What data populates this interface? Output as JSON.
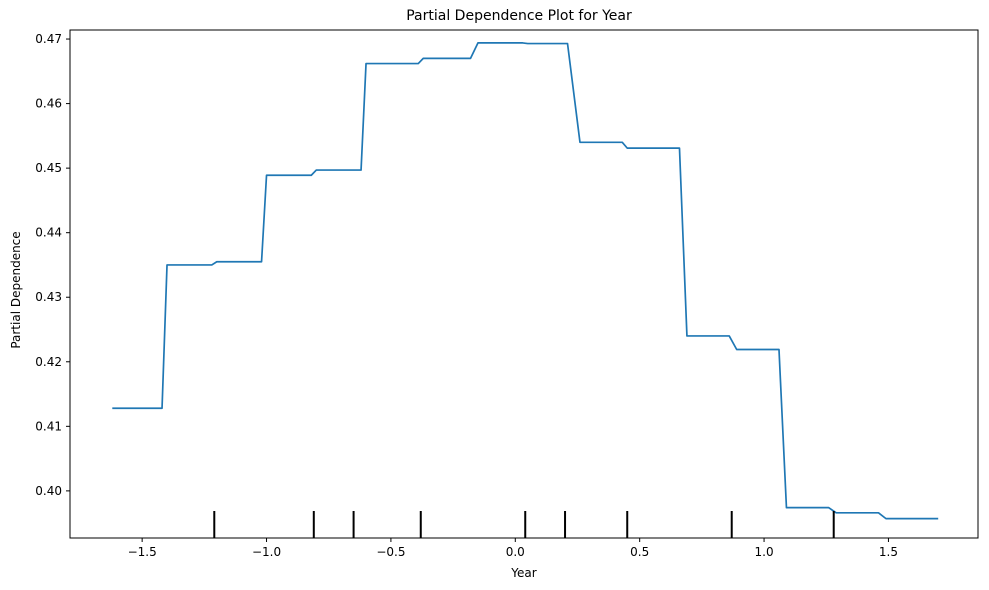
{
  "chart_data": {
    "type": "line",
    "title": "Partial Dependence Plot for Year",
    "xlabel": "Year",
    "ylabel": "Partial Dependence",
    "xlim": [
      -1.79,
      1.86
    ],
    "ylim": [
      0.3927,
      0.4714
    ],
    "x_ticks": [
      -1.5,
      -1.0,
      -0.5,
      0.0,
      0.5,
      1.0,
      1.5
    ],
    "x_tick_labels": [
      "−1.5",
      "−1.0",
      "−0.5",
      "0.0",
      "0.5",
      "1.0",
      "1.5"
    ],
    "y_ticks": [
      0.4,
      0.41,
      0.42,
      0.43,
      0.44,
      0.45,
      0.46,
      0.47
    ],
    "y_tick_labels": [
      "0.40",
      "0.41",
      "0.42",
      "0.43",
      "0.44",
      "0.45",
      "0.46",
      "0.47"
    ],
    "grid": false,
    "line_color": "#1f77b4",
    "series": [
      {
        "x": [
          -1.62,
          -1.42,
          -1.4,
          -1.22,
          -1.2,
          -1.02,
          -1.0,
          -0.82,
          -0.8,
          -0.62,
          -0.6,
          -0.39,
          -0.37,
          -0.18,
          -0.15,
          0.03,
          0.05,
          0.21,
          0.26,
          0.43,
          0.45,
          0.66,
          0.69,
          0.86,
          0.89,
          1.06,
          1.09,
          1.26,
          1.29,
          1.46,
          1.49,
          1.7
        ],
        "y": [
          0.4128,
          0.4128,
          0.435,
          0.435,
          0.4355,
          0.4355,
          0.4489,
          0.4489,
          0.4497,
          0.4497,
          0.4662,
          0.4662,
          0.467,
          0.467,
          0.4694,
          0.4694,
          0.4693,
          0.4693,
          0.454,
          0.454,
          0.4531,
          0.4531,
          0.424,
          0.424,
          0.4219,
          0.4219,
          0.3974,
          0.3974,
          0.3966,
          0.3966,
          0.3957,
          0.3957
        ]
      }
    ],
    "deciles": [
      -1.21,
      -0.81,
      -0.65,
      -0.38,
      0.04,
      0.2,
      0.45,
      0.87,
      1.28
    ]
  }
}
